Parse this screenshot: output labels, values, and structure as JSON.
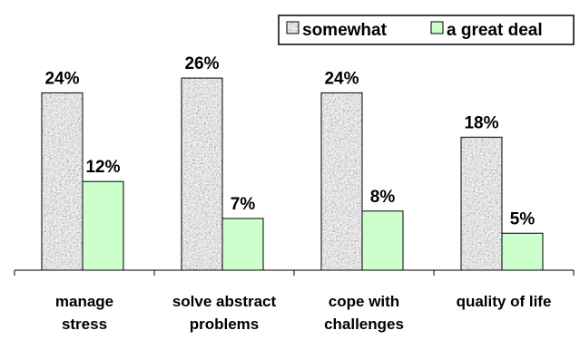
{
  "chart_data": {
    "type": "bar",
    "title": "",
    "xlabel": "",
    "ylabel": "",
    "ylim": [
      0,
      28
    ],
    "grid": false,
    "legend_position": "top-right",
    "categories": [
      {
        "line1": "manage",
        "line2": "stress"
      },
      {
        "line1": "solve abstract",
        "line2": "problems"
      },
      {
        "line1": "cope with",
        "line2": "challenges"
      },
      {
        "line1": "quality of life",
        "line2": ""
      }
    ],
    "series": [
      {
        "name": "somewhat",
        "color": "#9a9a9a",
        "pattern": "granite-texture",
        "values": [
          24,
          26,
          24,
          18
        ],
        "labels": [
          "24%",
          "26%",
          "24%",
          "18%"
        ]
      },
      {
        "name": "a great deal",
        "color": "#ccffcc",
        "values": [
          12,
          7,
          8,
          5
        ],
        "labels": [
          "12%",
          "7%",
          "8%",
          "5%"
        ]
      }
    ]
  }
}
